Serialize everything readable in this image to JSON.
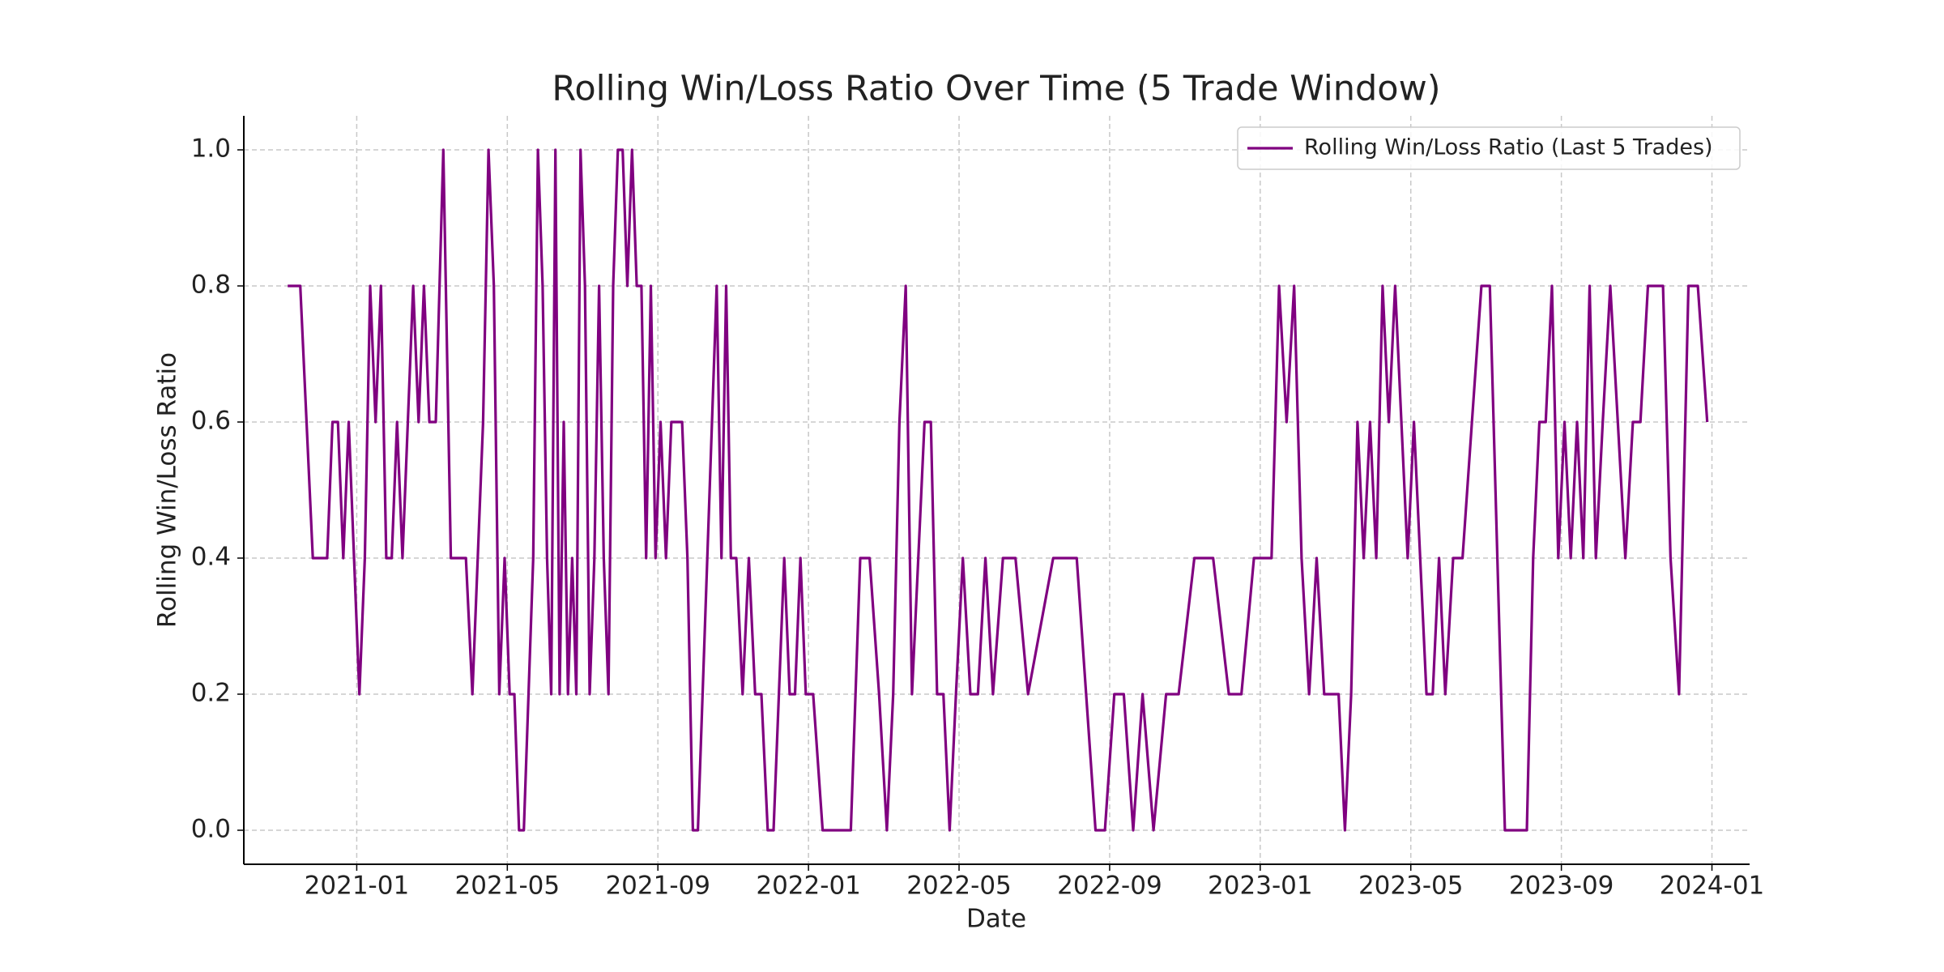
{
  "chart_data": {
    "type": "line",
    "title": "Rolling Win/Loss Ratio Over Time (5 Trade Window)",
    "x_label": "Date",
    "y_label": "Rolling Win/Loss Ratio",
    "x": [
      "2020-11",
      "2020-11",
      "2020-11",
      "2020-12",
      "2020-12",
      "2020-12",
      "2020-12",
      "2020-12",
      "2020-12",
      "2020-12",
      "2021-01",
      "2021-01",
      "2021-01",
      "2021-01",
      "2021-01",
      "2021-01",
      "2021-01",
      "2021-02",
      "2021-02",
      "2021-02",
      "2021-02",
      "2021-02",
      "2021-02",
      "2021-02",
      "2021-03",
      "2021-03",
      "2021-03",
      "2021-03",
      "2021-03",
      "2021-04",
      "2021-04",
      "2021-04",
      "2021-04",
      "2021-04",
      "2021-04",
      "2021-04",
      "2021-05",
      "2021-05",
      "2021-05",
      "2021-05",
      "2021-05",
      "2021-05",
      "2021-05",
      "2021-05",
      "2021-06",
      "2021-06",
      "2021-06",
      "2021-06",
      "2021-06",
      "2021-06",
      "2021-06",
      "2021-06",
      "2021-06",
      "2021-07",
      "2021-07",
      "2021-07",
      "2021-07",
      "2021-07",
      "2021-07",
      "2021-07",
      "2021-07",
      "2021-08",
      "2021-08",
      "2021-08",
      "2021-08",
      "2021-08",
      "2021-08",
      "2021-08",
      "2021-08",
      "2021-09",
      "2021-09",
      "2021-09",
      "2021-09",
      "2021-09",
      "2021-09",
      "2021-09",
      "2021-10",
      "2021-10",
      "2021-10",
      "2021-10",
      "2021-10",
      "2021-10",
      "2021-10",
      "2021-10",
      "2021-11",
      "2021-11",
      "2021-11",
      "2021-11",
      "2021-11",
      "2021-11",
      "2021-12",
      "2021-12",
      "2021-12",
      "2021-12",
      "2021-12",
      "2021-12",
      "2021-12",
      "2022-01",
      "2022-01",
      "2022-01",
      "2022-01",
      "2022-02",
      "2022-02",
      "2022-02",
      "2022-02",
      "2022-03",
      "2022-03",
      "2022-03",
      "2022-03",
      "2022-03",
      "2022-03",
      "2022-04",
      "2022-04",
      "2022-04",
      "2022-04",
      "2022-04",
      "2022-04",
      "2022-05",
      "2022-05",
      "2022-05",
      "2022-05",
      "2022-05",
      "2022-06",
      "2022-06",
      "2022-06",
      "2022-07",
      "2022-08",
      "2022-08",
      "2022-08",
      "2022-08",
      "2022-09",
      "2022-09",
      "2022-09",
      "2022-09",
      "2022-10",
      "2022-10",
      "2022-10",
      "2022-11",
      "2022-11",
      "2022-12",
      "2022-12",
      "2022-12",
      "2023-01",
      "2023-01",
      "2023-01",
      "2023-01",
      "2023-01",
      "2023-02",
      "2023-02",
      "2023-02",
      "2023-02",
      "2023-02",
      "2023-03",
      "2023-03",
      "2023-03",
      "2023-03",
      "2023-03",
      "2023-03",
      "2023-04",
      "2023-04",
      "2023-04",
      "2023-04",
      "2023-04",
      "2023-04",
      "2023-05",
      "2023-05",
      "2023-05",
      "2023-05",
      "2023-05",
      "2023-05",
      "2023-06",
      "2023-06",
      "2023-06",
      "2023-06",
      "2023-07",
      "2023-07",
      "2023-07",
      "2023-07",
      "2023-07",
      "2023-08",
      "2023-08",
      "2023-08",
      "2023-08",
      "2023-08",
      "2023-08",
      "2023-09",
      "2023-09",
      "2023-09",
      "2023-09",
      "2023-09",
      "2023-09",
      "2023-10",
      "2023-10",
      "2023-10",
      "2023-10",
      "2023-10",
      "2023-11",
      "2023-11",
      "2023-11",
      "2023-11",
      "2023-11",
      "2023-12",
      "2023-12",
      "2023-12",
      "2023-12"
    ],
    "series": [
      {
        "name": "Rolling Win/Loss Ratio (Last 5 Trades)",
        "color": "#800080",
        "values": [
          0.8,
          0.8,
          0.4,
          0.4,
          0.4,
          0.6,
          0.6,
          0.4,
          0.6,
          0.4,
          0.2,
          0.4,
          0.8,
          0.6,
          0.8,
          0.4,
          0.4,
          0.6,
          0.4,
          0.6,
          0.8,
          0.6,
          0.8,
          0.6,
          0.6,
          1.0,
          0.4,
          0.4,
          0.4,
          0.2,
          0.4,
          0.6,
          1.0,
          0.8,
          0.2,
          0.4,
          0.2,
          0.2,
          0,
          0,
          0.2,
          0.4,
          1.0,
          0.8,
          0.4,
          0.2,
          1.0,
          0.2,
          0.6,
          0.2,
          0.4,
          0.2,
          1.0,
          0.8,
          0.2,
          0.4,
          0.8,
          0.4,
          0.2,
          0.8,
          1.0,
          1.0,
          0.8,
          1.0,
          0.8,
          0.8,
          0.4,
          0.8,
          0.4,
          0.6,
          0.4,
          0.6,
          0.6,
          0.6,
          0.4,
          0,
          0,
          0.2,
          0.4,
          0.6,
          0.8,
          0.4,
          0.8,
          0.4,
          0.4,
          0.2,
          0.4,
          0.2,
          0.2,
          0,
          0,
          0.2,
          0.4,
          0.2,
          0.2,
          0.4,
          0.2,
          0.2,
          0,
          0,
          0,
          0,
          0.4,
          0.4,
          0.2,
          0,
          0.2,
          0.6,
          0.8,
          0.2,
          0.4,
          0.6,
          0.6,
          0.2,
          0.2,
          0,
          0.2,
          0.4,
          0.2,
          0.2,
          0.4,
          0.2,
          0.4,
          0.4,
          0.2,
          0.4,
          0.4,
          0.2,
          0,
          0,
          0.2,
          0.2,
          0,
          0.2,
          0,
          0.2,
          0.2,
          0.4,
          0.4,
          0.2,
          0.2,
          0.4,
          0.4,
          0.4,
          0.8,
          0.6,
          0.8,
          0.4,
          0.2,
          0.4,
          0.2,
          0.2,
          0.2,
          0,
          0.2,
          0.6,
          0.4,
          0.6,
          0.4,
          0.8,
          0.6,
          0.8,
          0.6,
          0.4,
          0.6,
          0.4,
          0.2,
          0.2,
          0.4,
          0.2,
          0.4,
          0.4,
          0.6,
          0.8,
          0.8,
          0.4,
          0,
          0,
          0,
          0,
          0.4,
          0.6,
          0.6,
          0.8,
          0.4,
          0.6,
          0.4,
          0.6,
          0.4,
          0.8,
          0.4,
          0.6,
          0.8,
          0.6,
          0.4,
          0.6,
          0.6,
          0.8,
          0.8,
          0.8,
          0.4,
          0.2,
          0.8,
          0.8,
          0.6
        ]
      }
    ],
    "xlim": [
      "2020-10",
      "2024-02"
    ],
    "xticks": [
      "2021-01",
      "2021-05",
      "2021-09",
      "2022-01",
      "2022-05",
      "2022-09",
      "2023-01",
      "2023-05",
      "2023-09",
      "2024-01"
    ],
    "ylim": [
      -0.05,
      1.05
    ],
    "yticks": [
      {
        "value": 0,
        "label": "0.0"
      },
      0.2,
      0.4,
      0.6,
      0.8,
      {
        "value": 1,
        "label": "1.0"
      }
    ],
    "grid": true,
    "legend": "upper right"
  }
}
